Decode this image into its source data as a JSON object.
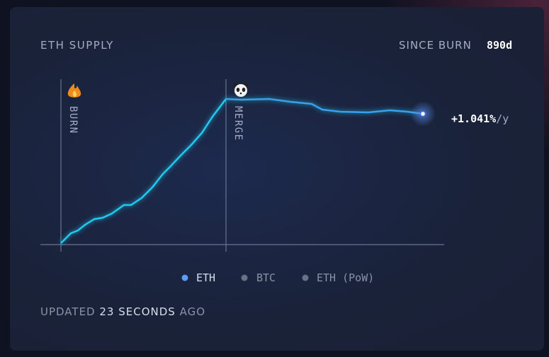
{
  "header": {
    "title": "ETH SUPPLY",
    "since_label": "SINCE BURN",
    "since_value": "890d"
  },
  "annotations": {
    "burn": "BURN",
    "merge": "MERGE"
  },
  "value_label": {
    "value": "+1.041%",
    "unit": "/y"
  },
  "legend": [
    "ETH",
    "BTC",
    "ETH (PoW)"
  ],
  "footer": {
    "prefix": "UPDATED",
    "time": "23 SECONDS",
    "suffix": "AGO"
  }
}
